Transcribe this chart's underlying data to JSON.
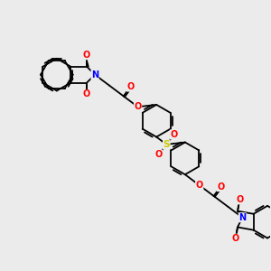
{
  "background_color": "#ebebeb",
  "bond_color": "#000000",
  "atom_colors": {
    "O": "#ff0000",
    "N": "#0000ff",
    "S": "#cccc00",
    "C": "#000000"
  },
  "figsize": [
    3.0,
    3.0
  ],
  "dpi": 100
}
